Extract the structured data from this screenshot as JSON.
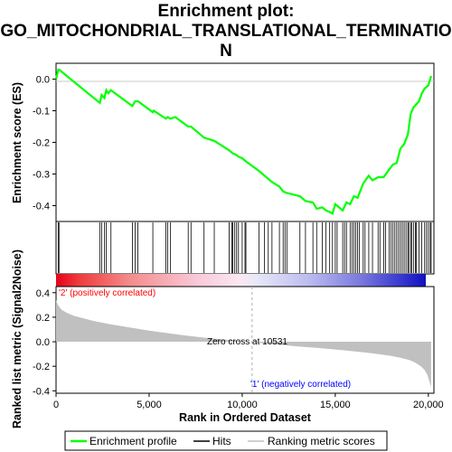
{
  "chart_data": {
    "type": "line",
    "title_line1": "Enrichment plot:",
    "title_line2": "GO_MITOCHONDRIAL_TRANSLATIONAL_TERMINATIO",
    "title_line3": "N",
    "xlabel": "Rank in Ordered Dataset",
    "xlim": [
      0,
      20300
    ],
    "x_ticks": [
      0,
      5000,
      10000,
      15000,
      20000
    ],
    "x_tick_labels": [
      "0",
      "5,000",
      "10,000",
      "15,000",
      "20,000"
    ],
    "es_panel": {
      "ylabel": "Enrichment score (ES)",
      "ylim": [
        -0.45,
        0.05
      ],
      "y_ticks": [
        0.0,
        -0.1,
        -0.2,
        -0.3,
        -0.4
      ],
      "y_tick_labels": [
        "0.0",
        "-0.1",
        "-0.2",
        "-0.3",
        "-0.4"
      ],
      "series": [
        {
          "name": "Enrichment profile",
          "color": "#00ff00",
          "x": [
            0,
            120,
            160,
            2350,
            2450,
            2600,
            2700,
            2800,
            2950,
            4100,
            4250,
            4400,
            5200,
            5250,
            5900,
            6000,
            6150,
            6400,
            7100,
            7250,
            7950,
            8500,
            9300,
            9500,
            9700,
            9800,
            10000,
            10200,
            10900,
            11200,
            11600,
            12000,
            12200,
            12400,
            13100,
            13400,
            13800,
            14000,
            14300,
            14500,
            14700,
            14850,
            15000,
            15400,
            15600,
            15800,
            16000,
            16200,
            16500,
            16800,
            17000,
            17300,
            17600,
            17900,
            18100,
            18300,
            18500,
            18700,
            18900,
            19050,
            19200,
            19350,
            19500,
            19650,
            19800,
            20000,
            20150
          ],
          "y": [
            0.0,
            0.03,
            0.03,
            -0.075,
            -0.05,
            -0.06,
            -0.035,
            -0.045,
            -0.035,
            -0.085,
            -0.07,
            -0.07,
            -0.105,
            -0.1,
            -0.125,
            -0.12,
            -0.125,
            -0.12,
            -0.15,
            -0.15,
            -0.185,
            -0.195,
            -0.225,
            -0.235,
            -0.24,
            -0.245,
            -0.25,
            -0.26,
            -0.29,
            -0.305,
            -0.325,
            -0.34,
            -0.355,
            -0.36,
            -0.37,
            -0.385,
            -0.39,
            -0.41,
            -0.405,
            -0.415,
            -0.42,
            -0.425,
            -0.395,
            -0.415,
            -0.39,
            -0.395,
            -0.37,
            -0.375,
            -0.33,
            -0.305,
            -0.32,
            -0.31,
            -0.31,
            -0.285,
            -0.27,
            -0.265,
            -0.22,
            -0.205,
            -0.175,
            -0.11,
            -0.09,
            -0.08,
            -0.07,
            -0.045,
            -0.03,
            -0.02,
            0.01
          ]
        }
      ]
    },
    "hits": {
      "name": "Hits",
      "color": "#000000",
      "positions": [
        120,
        160,
        2350,
        2450,
        2600,
        2700,
        2950,
        4100,
        4250,
        4400,
        5200,
        5900,
        6000,
        6150,
        7100,
        7250,
        7950,
        8500,
        9300,
        9450,
        9500,
        9600,
        9700,
        9800,
        10000,
        10150,
        10200,
        10900,
        11200,
        11400,
        11600,
        12000,
        12200,
        12300,
        12400,
        13100,
        13400,
        13800,
        14000,
        14300,
        14500,
        14700,
        14850,
        15000,
        15100,
        15400,
        15500,
        15600,
        15800,
        15900,
        16000,
        16100,
        16200,
        16300,
        16500,
        16600,
        16800,
        17000,
        17300,
        17400,
        17600,
        17700,
        17900,
        18000,
        18100,
        18200,
        18300,
        18400,
        18500,
        18600,
        18700,
        18800,
        18900,
        18950,
        19050,
        19100,
        19200,
        19300,
        19350,
        19500,
        19650,
        19800,
        19900,
        20000,
        20100,
        20150
      ]
    },
    "metric_panel": {
      "ylabel": "Ranked list metric (Signal2Noise)",
      "name": "Ranking metric scores",
      "color": "#c0c0c0",
      "ylim": [
        -0.42,
        0.45
      ],
      "y_ticks": [
        0.4,
        0.2,
        0.0,
        -0.2,
        -0.4
      ],
      "y_tick_labels": [
        "0.4",
        "0.2",
        "0.0",
        "-0.2",
        "-0.4"
      ],
      "x": [
        0,
        100,
        300,
        600,
        1000,
        1500,
        2000,
        3000,
        4000,
        5000,
        6000,
        7000,
        8000,
        9000,
        10000,
        10531,
        11000,
        12000,
        13000,
        14000,
        15000,
        16000,
        17000,
        18000,
        18500,
        19000,
        19300,
        19600,
        19800,
        19950,
        20050,
        20150
      ],
      "y": [
        0.34,
        0.3,
        0.26,
        0.235,
        0.21,
        0.19,
        0.17,
        0.14,
        0.115,
        0.09,
        0.07,
        0.05,
        0.033,
        0.018,
        0.005,
        0.0,
        -0.01,
        -0.025,
        -0.038,
        -0.05,
        -0.063,
        -0.078,
        -0.095,
        -0.115,
        -0.13,
        -0.15,
        -0.17,
        -0.2,
        -0.23,
        -0.27,
        -0.32,
        -0.37
      ],
      "zero_cross_label": "Zero cross at 10531",
      "zero_cross": 10531,
      "pos_label": "'2' (positively correlated)",
      "neg_label": "'1' (negatively correlated)",
      "pos_label_color": "#ff0000",
      "neg_label_color": "#0000ff"
    },
    "legend": {
      "placement": "bottom",
      "items": [
        {
          "label": "Enrichment profile",
          "color": "#00ff00"
        },
        {
          "label": "Hits",
          "color": "#000000"
        },
        {
          "label": "Ranking metric scores",
          "color": "#c0c0c0"
        }
      ]
    }
  }
}
